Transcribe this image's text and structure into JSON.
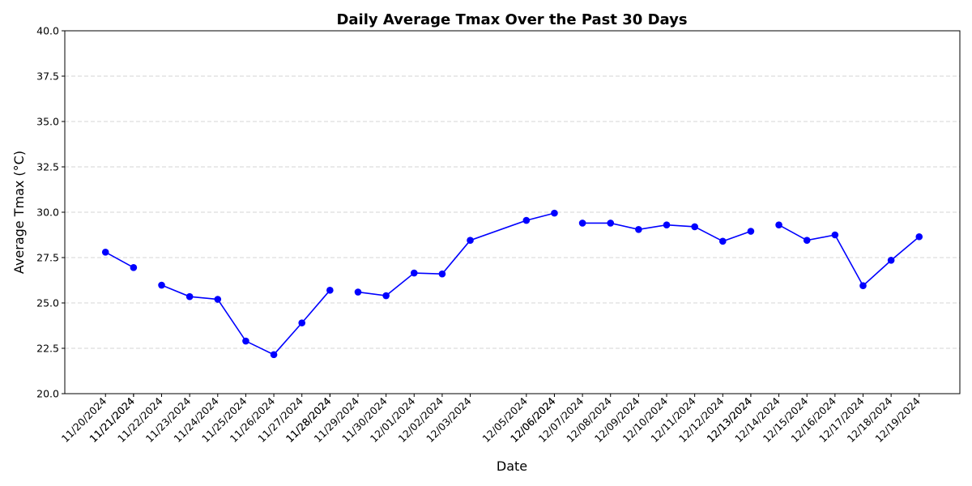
{
  "chart_data": {
    "type": "line",
    "title": "Daily Average Tmax Over the Past 30 Days",
    "xlabel": "Date",
    "ylabel": "Average Tmax (°C)",
    "x": [
      "11/20/2024",
      "11/21/2024",
      "11/21/2024",
      "11/22/2024",
      "11/23/2024",
      "11/24/2024",
      "11/25/2024",
      "11/26/2024",
      "11/27/2024",
      "11/28/2024",
      "11/28/2024",
      "11/29/2024",
      "11/30/2024",
      "12/01/2024",
      "12/02/2024",
      "12/03/2024",
      "12/05/2024",
      "12/06/2024",
      "12/06/2024",
      "12/07/2024",
      "12/08/2024",
      "12/09/2024",
      "12/10/2024",
      "12/11/2024",
      "12/12/2024",
      "12/13/2024",
      "12/13/2024",
      "12/14/2024",
      "12/15/2024",
      "12/16/2024",
      "12/17/2024",
      "12/18/2024",
      "12/19/2024"
    ],
    "series": [
      {
        "name": "Average Tmax",
        "color": "#0000ff",
        "values": [
          27.8,
          26.95,
          null,
          25.98,
          25.35,
          25.2,
          22.9,
          22.15,
          23.9,
          25.7,
          null,
          25.6,
          25.4,
          26.65,
          26.6,
          28.45,
          29.55,
          29.95,
          null,
          29.4,
          29.4,
          29.05,
          29.3,
          29.2,
          28.4,
          28.95,
          null,
          29.3,
          28.45,
          28.75,
          25.95,
          27.35,
          28.65
        ]
      }
    ],
    "ylim": [
      20,
      40
    ],
    "yticks": [
      {
        "value": 20,
        "label": "20.0"
      },
      22.5,
      {
        "value": 25,
        "label": "25.0"
      },
      27.5,
      {
        "value": 30,
        "label": "30.0"
      },
      32.5,
      {
        "value": 35,
        "label": "35.0"
      },
      37.5,
      {
        "value": 40,
        "label": "40.0"
      }
    ],
    "grid": true
  }
}
